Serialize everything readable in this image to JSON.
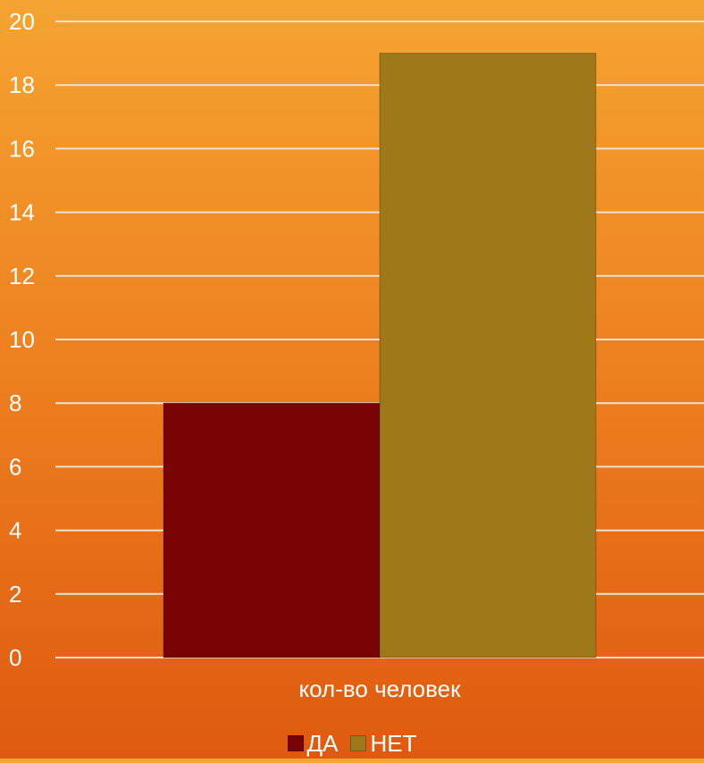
{
  "chart_data": {
    "type": "bar",
    "categories": [
      "кол-во человек"
    ],
    "series": [
      {
        "name": "ДА",
        "values": [
          8
        ],
        "color": "#790303"
      },
      {
        "name": "НЕТ",
        "values": [
          19
        ],
        "color": "#9e7819"
      }
    ],
    "ylim": [
      0,
      20
    ],
    "yticks": [
      "0",
      "2",
      "4",
      "6",
      "8",
      "10",
      "12",
      "14",
      "16",
      "18",
      "20"
    ],
    "grid": true,
    "legend_position": "bottom"
  }
}
